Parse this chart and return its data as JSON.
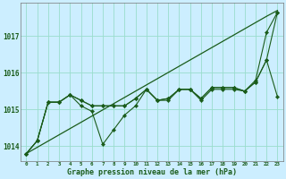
{
  "xlabel": "Graphe pression niveau de la mer (hPa)",
  "background_color": "#cceeff",
  "grid_color": "#99ddcc",
  "line_color": "#1a5c1a",
  "text_color": "#1a5c1a",
  "ylim": [
    1013.6,
    1017.9
  ],
  "yticks": [
    1014,
    1015,
    1016,
    1017
  ],
  "hours": [
    0,
    1,
    2,
    3,
    4,
    5,
    6,
    7,
    8,
    9,
    10,
    11,
    12,
    13,
    14,
    15,
    16,
    17,
    18,
    19,
    20,
    21,
    22,
    23
  ],
  "y_diag": [
    1013.8,
    1013.97,
    1014.14,
    1014.31,
    1014.48,
    1014.65,
    1014.82,
    1014.99,
    1015.16,
    1015.33,
    1015.5,
    1015.67,
    1015.84,
    1016.01,
    1016.18,
    1016.35,
    1016.52,
    1016.69,
    1016.86,
    1017.03,
    1017.2,
    1017.37,
    1017.54,
    1017.7
  ],
  "y_line1": [
    1013.8,
    1014.15,
    1015.2,
    1015.2,
    1015.4,
    1015.1,
    1014.95,
    1014.05,
    1014.45,
    1014.85,
    1015.1,
    1015.55,
    1015.25,
    1015.25,
    1015.55,
    1015.55,
    1015.25,
    1015.55,
    1015.55,
    1015.55,
    1015.5,
    1015.8,
    1017.1,
    1017.65
  ],
  "y_line2": [
    1013.8,
    1014.15,
    1015.2,
    1015.2,
    1015.4,
    1015.25,
    1015.1,
    1015.1,
    1015.1,
    1015.1,
    1015.3,
    1015.55,
    1015.25,
    1015.3,
    1015.55,
    1015.55,
    1015.3,
    1015.6,
    1015.6,
    1015.6,
    1015.5,
    1015.75,
    1016.35,
    1017.65
  ],
  "y_line3": [
    1013.8,
    1014.15,
    1015.2,
    1015.2,
    1015.4,
    1015.25,
    1015.1,
    1015.1,
    1015.1,
    1015.1,
    1015.3,
    1015.55,
    1015.25,
    1015.3,
    1015.55,
    1015.55,
    1015.3,
    1015.6,
    1015.6,
    1015.6,
    1015.5,
    1015.75,
    1016.35,
    1015.35
  ]
}
